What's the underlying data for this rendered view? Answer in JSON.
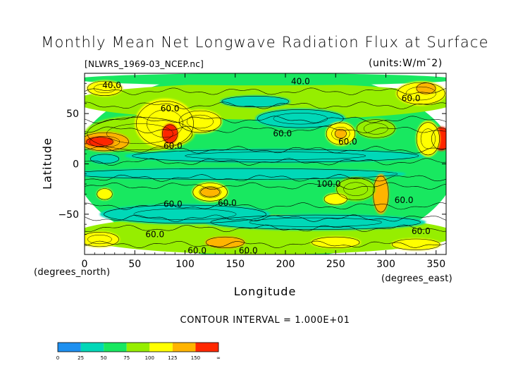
{
  "chart_data": {
    "type": "heatmap",
    "title": "Monthly Mean Net Longwave Radiation Flux at Surface",
    "file_label": "[NLWRS_1969-03_NCEP.nc]",
    "units_label": "(units:W/m¯2)",
    "xlabel": "Longitude",
    "ylabel": "Latitude",
    "x_unit_note": "(degrees_east)",
    "y_unit_note": "(degrees_north)",
    "contour_interval_text": "CONTOUR INTERVAL = 1.000E+01",
    "xlim": [
      0,
      360
    ],
    "ylim": [
      -90,
      90
    ],
    "x_ticks": [
      0,
      50,
      100,
      150,
      200,
      250,
      300,
      350
    ],
    "x_tick_labels": [
      "0",
      "50",
      "100",
      "150",
      "200",
      "250",
      "300",
      "350"
    ],
    "y_ticks": [
      50,
      0,
      -50
    ],
    "y_tick_labels": [
      "50",
      "0",
      "−50"
    ],
    "color_levels": [
      {
        "from": 0,
        "to": 25,
        "color": "#1e90f0"
      },
      {
        "from": 25,
        "to": 50,
        "color": "#00d8b8"
      },
      {
        "from": 50,
        "to": 75,
        "color": "#18e860"
      },
      {
        "from": 75,
        "to": 100,
        "color": "#96ee00"
      },
      {
        "from": 100,
        "to": 125,
        "color": "#ffff00"
      },
      {
        "from": 125,
        "to": 150,
        "color": "#ffb400"
      },
      {
        "from": 150,
        "to": "∞",
        "color": "#ff2800"
      }
    ],
    "colorbar_labels": [
      "0",
      "25",
      "50",
      "75",
      "100",
      "125",
      "150",
      "∞"
    ],
    "contour_labels": [
      {
        "lon": 27,
        "lat": 78,
        "text": "40.0"
      },
      {
        "lon": 215,
        "lat": 82,
        "text": "40.0"
      },
      {
        "lon": 85,
        "lat": 55,
        "text": "60.0"
      },
      {
        "lon": 325,
        "lat": 65,
        "text": "60.0"
      },
      {
        "lon": 197,
        "lat": 30,
        "text": "60.0"
      },
      {
        "lon": 262,
        "lat": 22,
        "text": "60.0"
      },
      {
        "lon": 88,
        "lat": 18,
        "text": "60.0"
      },
      {
        "lon": 243,
        "lat": -20,
        "text": "100.0"
      },
      {
        "lon": 88,
        "lat": -40,
        "text": "60.0"
      },
      {
        "lon": 142,
        "lat": -39,
        "text": "60.0"
      },
      {
        "lon": 318,
        "lat": -36,
        "text": "60.0"
      },
      {
        "lon": 335,
        "lat": -67,
        "text": "60.0"
      },
      {
        "lon": 70,
        "lat": -70,
        "text": "60.0"
      },
      {
        "lon": 112,
        "lat": -86,
        "text": "60.0"
      },
      {
        "lon": 163,
        "lat": -86,
        "text": "60.0"
      }
    ],
    "regions": [
      {
        "lon": 180,
        "lat": 0,
        "rx": 190,
        "ry": 95,
        "value": 65
      },
      {
        "lon": 180,
        "lat": 62,
        "rx": 190,
        "ry": 18,
        "value": 85
      },
      {
        "lon": 180,
        "lat": 84,
        "rx": 190,
        "ry": 6,
        "value": 55
      },
      {
        "lon": 180,
        "lat": -70,
        "rx": 190,
        "ry": 20,
        "value": 85
      },
      {
        "lon": 190,
        "lat": 8,
        "rx": 150,
        "ry": 7,
        "value": 40
      },
      {
        "lon": 150,
        "lat": -10,
        "rx": 170,
        "ry": 6,
        "value": 40
      },
      {
        "lon": 100,
        "lat": -50,
        "rx": 85,
        "ry": 10,
        "value": 40
      },
      {
        "lon": 230,
        "lat": -58,
        "rx": 110,
        "ry": 8,
        "value": 45
      },
      {
        "lon": 215,
        "lat": 45,
        "rx": 45,
        "ry": 10,
        "value": 40
      },
      {
        "lon": 170,
        "lat": 62,
        "rx": 35,
        "ry": 6,
        "value": 40
      },
      {
        "lon": 55,
        "lat": 30,
        "rx": 55,
        "ry": 18,
        "value": 95
      },
      {
        "lon": 80,
        "lat": 40,
        "rx": 30,
        "ry": 25,
        "value": 110
      },
      {
        "lon": 115,
        "lat": 42,
        "rx": 22,
        "ry": 12,
        "value": 105
      },
      {
        "lon": 20,
        "lat": 22,
        "rx": 25,
        "ry": 10,
        "value": 140
      },
      {
        "lon": 15,
        "lat": 22,
        "rx": 14,
        "ry": 5,
        "value": 160
      },
      {
        "lon": 85,
        "lat": 30,
        "rx": 8,
        "ry": 10,
        "value": 160
      },
      {
        "lon": 255,
        "lat": 30,
        "rx": 15,
        "ry": 12,
        "value": 120
      },
      {
        "lon": 255,
        "lat": 30,
        "rx": 6,
        "ry": 5,
        "value": 140
      },
      {
        "lon": 290,
        "lat": 35,
        "rx": 20,
        "ry": 10,
        "value": 95
      },
      {
        "lon": 355,
        "lat": 25,
        "rx": 10,
        "ry": 12,
        "value": 160
      },
      {
        "lon": 342,
        "lat": 25,
        "rx": 12,
        "ry": 18,
        "value": 110
      },
      {
        "lon": 335,
        "lat": 70,
        "rx": 25,
        "ry": 12,
        "value": 110
      },
      {
        "lon": 340,
        "lat": 75,
        "rx": 10,
        "ry": 6,
        "value": 135
      },
      {
        "lon": 20,
        "lat": 75,
        "rx": 18,
        "ry": 8,
        "value": 110
      },
      {
        "lon": 125,
        "lat": -28,
        "rx": 18,
        "ry": 10,
        "value": 115
      },
      {
        "lon": 125,
        "lat": -28,
        "rx": 10,
        "ry": 5,
        "value": 140
      },
      {
        "lon": 295,
        "lat": -30,
        "rx": 8,
        "ry": 20,
        "value": 140
      },
      {
        "lon": 270,
        "lat": -25,
        "rx": 20,
        "ry": 12,
        "value": 95
      },
      {
        "lon": 250,
        "lat": -35,
        "rx": 12,
        "ry": 6,
        "value": 110
      },
      {
        "lon": 15,
        "lat": -75,
        "rx": 20,
        "ry": 8,
        "value": 115
      },
      {
        "lon": 140,
        "lat": -78,
        "rx": 20,
        "ry": 6,
        "value": 125
      },
      {
        "lon": 250,
        "lat": -78,
        "rx": 25,
        "ry": 6,
        "value": 115
      },
      {
        "lon": 330,
        "lat": -80,
        "rx": 25,
        "ry": 6,
        "value": 120
      },
      {
        "lon": 20,
        "lat": -30,
        "rx": 8,
        "ry": 6,
        "value": 110
      },
      {
        "lon": 20,
        "lat": 5,
        "rx": 15,
        "ry": 5,
        "value": 45
      }
    ]
  }
}
